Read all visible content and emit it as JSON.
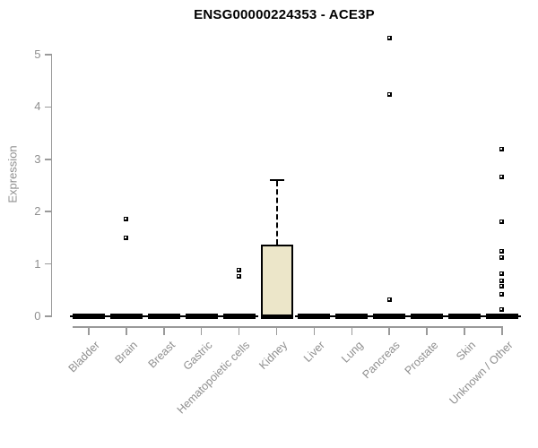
{
  "chart_data": {
    "type": "boxplot",
    "title": "ENSG00000224353 - ACE3P",
    "ylabel": "Expression",
    "xlabel": "",
    "ylim": [
      0,
      5.35
    ],
    "yticks": [
      0,
      1,
      2,
      3,
      4,
      5
    ],
    "grid": false,
    "legend": false,
    "categories": [
      "Bladder",
      "Brain",
      "Breast",
      "Gastric",
      "Hematopoietic cells",
      "Kidney",
      "Liver",
      "Lung",
      "Pancreas",
      "Prostate",
      "Skin",
      "Unknown / Other"
    ],
    "series": [
      {
        "category": "Bladder",
        "q1": 0,
        "median": 0,
        "q3": 0,
        "whisker_low": 0,
        "whisker_high": 0,
        "outliers": []
      },
      {
        "category": "Brain",
        "q1": 0,
        "median": 0,
        "q3": 0,
        "whisker_low": 0,
        "whisker_high": 0,
        "outliers": [
          1.85,
          1.5
        ]
      },
      {
        "category": "Breast",
        "q1": 0,
        "median": 0,
        "q3": 0,
        "whisker_low": 0,
        "whisker_high": 0,
        "outliers": []
      },
      {
        "category": "Gastric",
        "q1": 0,
        "median": 0,
        "q3": 0,
        "whisker_low": 0,
        "whisker_high": 0,
        "outliers": []
      },
      {
        "category": "Hematopoietic cells",
        "q1": 0,
        "median": 0,
        "q3": 0,
        "whisker_low": 0,
        "whisker_high": 0,
        "outliers": [
          0.89,
          0.76
        ]
      },
      {
        "category": "Kidney",
        "q1": 0,
        "median": 0,
        "q3": 1.37,
        "whisker_low": 0,
        "whisker_high": 2.61,
        "outliers": []
      },
      {
        "category": "Liver",
        "q1": 0,
        "median": 0,
        "q3": 0,
        "whisker_low": 0,
        "whisker_high": 0,
        "outliers": []
      },
      {
        "category": "Lung",
        "q1": 0,
        "median": 0,
        "q3": 0,
        "whisker_low": 0,
        "whisker_high": 0,
        "outliers": []
      },
      {
        "category": "Pancreas",
        "q1": 0,
        "median": 0,
        "q3": 0,
        "whisker_low": 0,
        "whisker_high": 0,
        "outliers": [
          5.32,
          4.24,
          0.31
        ]
      },
      {
        "category": "Prostate",
        "q1": 0,
        "median": 0,
        "q3": 0,
        "whisker_low": 0,
        "whisker_high": 0,
        "outliers": []
      },
      {
        "category": "Skin",
        "q1": 0,
        "median": 0,
        "q3": 0,
        "whisker_low": 0,
        "whisker_high": 0,
        "outliers": []
      },
      {
        "category": "Unknown / Other",
        "q1": 0,
        "median": 0,
        "q3": 0,
        "whisker_low": 0,
        "whisker_high": 0,
        "outliers": [
          3.2,
          2.66,
          1.8,
          1.25,
          1.13,
          0.82,
          0.67,
          0.58,
          0.42,
          0.12
        ]
      }
    ],
    "colors": {
      "box_fill": "#ece6c9",
      "box_border": "#000000",
      "marker": "#000000",
      "axis": "#9a9a9a",
      "tick_label": "#8f8f8f",
      "title": "#000000"
    }
  }
}
